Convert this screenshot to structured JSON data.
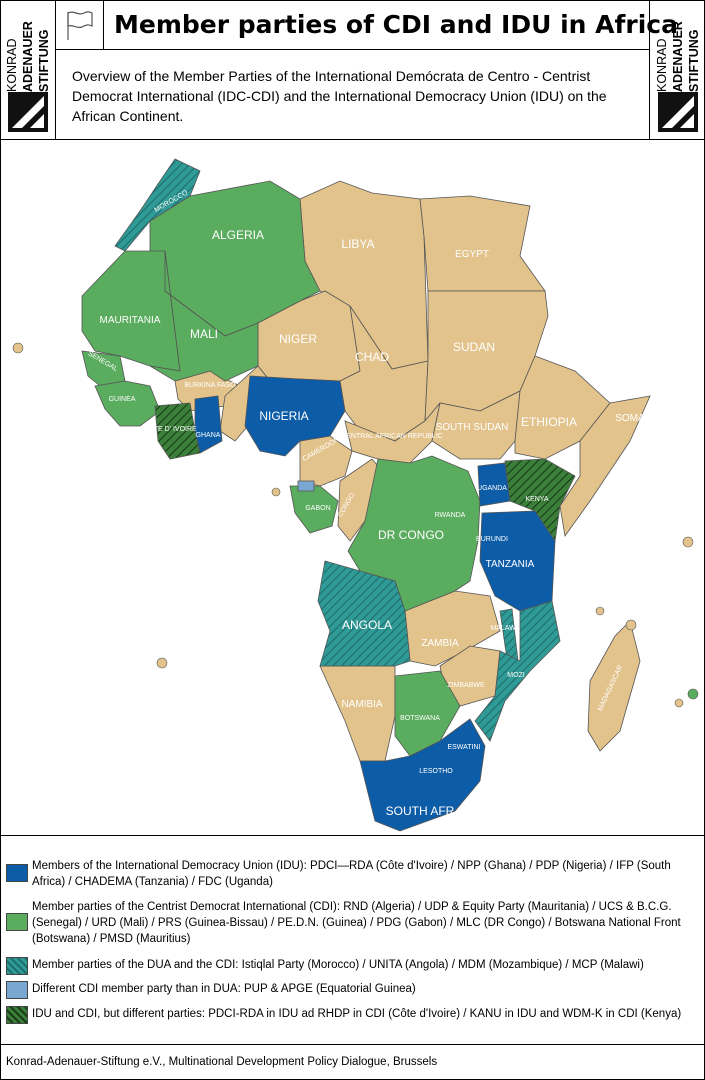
{
  "header": {
    "title": "Member parties of CDI and IDU in Africa",
    "subtitle": "Overview of the Member Parties of the International Demócrata de Centro - Centrist Democrat International (IDC-CDI) and the International Democracy Union (IDU) on the African Continent.",
    "logo_lines": [
      "KONRAD",
      "ADENAUER",
      "STIFTUNG"
    ]
  },
  "colors": {
    "idu": "#0d5ca7",
    "cdi": "#5aac5e",
    "dua_cdi": "#2f9a96",
    "other_cdi": "#7aa6d2",
    "idu_cdi_diff": "#2f6b2f",
    "non_member": "#e3c38c",
    "ocean": "#ffffff"
  },
  "map": {
    "labels": {
      "morocco": "MOROCCO",
      "algeria": "ALGERIA",
      "libya": "LIBYA",
      "egypt": "EGYPT",
      "mauritania": "MAURITANIA",
      "mali": "MALI",
      "niger": "NIGER",
      "chad": "CHAD",
      "sudan": "SUDAN",
      "senegal": "SENEGAL",
      "guinea": "GUINEA",
      "burkina": "BURKINA FASO",
      "cote": "COTE D' IVOIRE",
      "ghana": "GHANA",
      "nigeria": "NIGERIA",
      "car": "CENTRAL AFRICAN REPUBLIC",
      "south_sudan": "SOUTH SUDAN",
      "ethiopia": "ETHIOPIA",
      "somalia": "SOMA",
      "cameroon": "CAMEROON",
      "congo": "CONGO",
      "gabon": "GABON",
      "uganda": "UGANDA",
      "kenya": "KENYA",
      "rwanda": "RWANDA",
      "burundi": "BURUNDI",
      "drc": "DR CONGO",
      "tanzania": "TANZANIA",
      "angola": "ANGOLA",
      "zambia": "ZAMBIA",
      "malawi": "MALAWI",
      "mozambique": "MOZI",
      "zimbabwe": "ZIMBABWE",
      "namibia": "NAMIBIA",
      "botswana": "BOTSWANA",
      "madagascar": "MADAGASCAR",
      "eswatini": "ESWATINI",
      "lesotho": "LESOTHO",
      "south_africa": "SOUTH AFR"
    }
  },
  "legend": [
    {
      "key": "idu",
      "text": "Members of the International Democracy Union (IDU): PDCI—RDA (Côte d'Ivoire) / NPP (Ghana) / PDP (Nigeria) / IFP (South Africa) / CHADEMA (Tanzania) / FDC (Uganda)"
    },
    {
      "key": "cdi",
      "text": "Member parties of the Centrist Democrat International (CDI): RND (Algeria) / UDP & Equity Party (Mauritania) / UCS & B.C.G. (Senegal) / URD (Mali) / PRS (Guinea-Bissau) / PE.D.N. (Guinea) / PDG (Gabon) / MLC (DR Congo) / Botswana National Front (Botswana) / PMSD (Mauritius)"
    },
    {
      "key": "dua_cdi",
      "text": "Member parties of the DUA and the CDI: Istiqlal Party (Morocco) / UNITA (Angola) / MDM (Mozambique) / MCP (Malawi)"
    },
    {
      "key": "other_cdi",
      "text": "Different CDI member party than in DUA: PUP & APGE (Equatorial Guinea)"
    },
    {
      "key": "idu_cdi_diff",
      "text": "IDU and CDI, but different parties: PDCI-RDA in IDU ad RHDP in CDI (Côte d'Ivoire) / KANU in IDU and WDM-K in CDI (Kenya)"
    }
  ],
  "footer": "Konrad-Adenauer-Stiftung e.V., Multinational Development Policy Dialogue, Brussels"
}
